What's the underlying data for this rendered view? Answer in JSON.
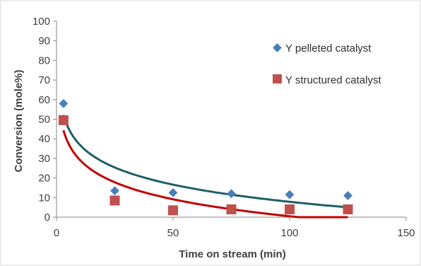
{
  "chart_data": {
    "type": "scatter",
    "title": "",
    "xlabel": "Time on stream (min)",
    "ylabel": "Conversion (mole%)",
    "xlim": [
      0,
      150
    ],
    "ylim": [
      0,
      100
    ],
    "xticks": [
      0,
      50,
      100,
      150
    ],
    "yticks": [
      0,
      10,
      20,
      30,
      40,
      50,
      60,
      70,
      80,
      90,
      100
    ],
    "grid": false,
    "legend_position": "top-right",
    "series": [
      {
        "name": "Y pelleted catalyst",
        "marker": "diamond",
        "color": "#4a7ebb",
        "trend_color": "#1f5f66",
        "x": [
          3,
          25,
          50,
          75,
          100,
          125
        ],
        "y": [
          58,
          13.5,
          12.5,
          12,
          11.5,
          11
        ]
      },
      {
        "name": "Y structured catalyst",
        "marker": "square",
        "color": "#c0504d",
        "trend_color": "#c00000",
        "x": [
          3,
          25,
          50,
          75,
          100,
          125
        ],
        "y": [
          49.5,
          8.5,
          3.5,
          4,
          4,
          4
        ]
      }
    ]
  }
}
